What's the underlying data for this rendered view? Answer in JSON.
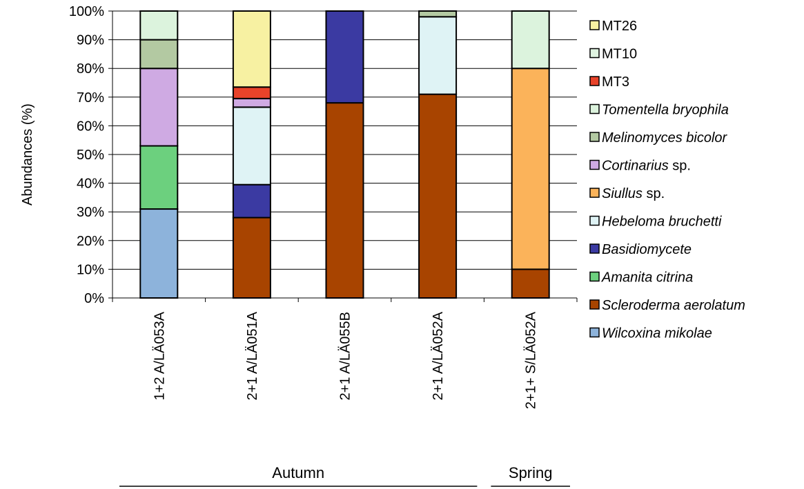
{
  "chart_data": {
    "type": "bar",
    "stacked": true,
    "percent": true,
    "ylabel": "Abundances (%)",
    "ylim": [
      0,
      100
    ],
    "yticks": [
      "0%",
      "10%",
      "20%",
      "30%",
      "40%",
      "50%",
      "60%",
      "70%",
      "80%",
      "90%",
      "100%"
    ],
    "grid": true,
    "legend_position": "right",
    "categories": [
      "1+2 A/LÄ053A",
      "2+1 A/LÄ051A",
      "2+1 A/LÄ055B",
      "2+1 A/LÄ052A",
      "2+1+ S/LÄ052A"
    ],
    "groups": [
      {
        "label": "Autumn",
        "categories": [
          0,
          1,
          2,
          3
        ]
      },
      {
        "label": "Spring",
        "categories": [
          4
        ]
      }
    ],
    "series": [
      {
        "name": "Wilcoxina mikolae",
        "italic_part": "Wilcoxina mikolae",
        "rest": "",
        "color": "#8db3db",
        "values": [
          31,
          0,
          0,
          0,
          0
        ]
      },
      {
        "name": "Scleroderma aerolatum",
        "italic_part": "Scleroderma aerolatum",
        "rest": "",
        "color": "#a84400",
        "values": [
          0,
          28,
          68,
          71,
          10
        ]
      },
      {
        "name": "Amanita citrina",
        "italic_part": "Amanita citrina",
        "rest": "",
        "color": "#6cd07e",
        "values": [
          22,
          0,
          0,
          0,
          0
        ]
      },
      {
        "name": "Basidiomycete",
        "italic_part": "Basidiomycete",
        "rest": "",
        "color": "#3b3aa2",
        "values": [
          0,
          11.5,
          32,
          0,
          0
        ]
      },
      {
        "name": "Hebeloma bruchetti",
        "italic_part": "Hebeloma bruchetti",
        "rest": "",
        "color": "#dff3f5",
        "values": [
          0,
          27,
          0,
          27,
          0
        ]
      },
      {
        "name": "Siullus sp.",
        "italic_part": "Siullus",
        "rest": " sp.",
        "color": "#fbb35a",
        "values": [
          0,
          0,
          0,
          0,
          70
        ]
      },
      {
        "name": "Cortinarius sp.",
        "italic_part": "Cortinarius",
        "rest": " sp.",
        "color": "#cfaae3",
        "values": [
          27,
          3,
          0,
          0,
          0
        ]
      },
      {
        "name": "Melinomyces bicolor",
        "italic_part": "Melinomyces bicolor",
        "rest": "",
        "color": "#b3c9a2",
        "values": [
          10,
          0,
          0,
          2,
          0
        ]
      },
      {
        "name": "Tomentella bryophila",
        "italic_part": "Tomentella bryophila",
        "rest": "",
        "color": "#dcf3dd",
        "values": [
          10,
          0,
          0,
          0,
          20
        ]
      },
      {
        "name": "MT3",
        "italic_part": "",
        "rest": "MT3",
        "color": "#e8432a",
        "values": [
          0,
          4,
          0,
          0,
          0
        ]
      },
      {
        "name": "MT10",
        "italic_part": "",
        "rest": "MT10",
        "color": "#dff3e0",
        "values": [
          0,
          0,
          0,
          0,
          0
        ]
      },
      {
        "name": "MT26",
        "italic_part": "",
        "rest": "MT26",
        "color": "#f7f1a2",
        "values": [
          0,
          26.5,
          0,
          0,
          0
        ]
      }
    ]
  }
}
